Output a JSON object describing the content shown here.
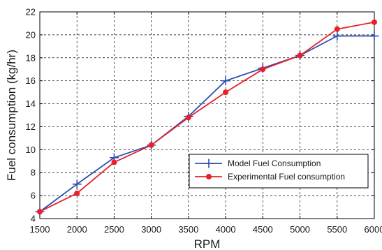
{
  "chart_data": {
    "type": "line",
    "x": [
      1500,
      2000,
      2500,
      3000,
      3500,
      4000,
      4500,
      5000,
      5500,
      6000
    ],
    "series": [
      {
        "name": "Model Fuel Consumption",
        "color": "#2a4db0",
        "marker": "plus",
        "values": [
          4.6,
          7.0,
          9.3,
          10.4,
          12.9,
          16.0,
          17.1,
          18.2,
          19.9,
          19.9
        ]
      },
      {
        "name": "Experimental Fuel consumption",
        "color": "#e8202a",
        "marker": "circle",
        "values": [
          4.6,
          6.2,
          8.9,
          10.4,
          12.8,
          15.0,
          17.0,
          18.2,
          20.5,
          21.1
        ]
      }
    ],
    "xlabel": "RPM",
    "ylabel": "Fuel consumption (kg/hr)",
    "xlim": [
      1500,
      6000
    ],
    "ylim": [
      4,
      22
    ],
    "xticks": [
      "1500",
      "2000",
      "2500",
      "3000",
      "3500",
      "4000",
      "4500",
      "5000",
      "5500",
      "6000"
    ],
    "yticks": [
      "4",
      "6",
      "8",
      "10",
      "12",
      "14",
      "16",
      "18",
      "20",
      "22"
    ],
    "grid": true,
    "grid_style": "dashed",
    "legend_position": "lower-right"
  }
}
